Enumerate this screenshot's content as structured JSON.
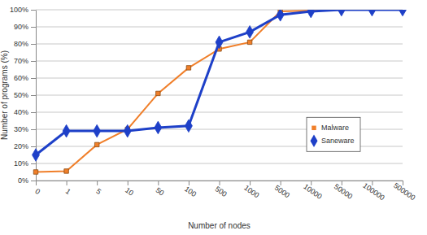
{
  "chart_data": {
    "type": "line",
    "x_label": "Number of nodes",
    "y_label": "Number of programs (%)",
    "categories": [
      "0",
      "1",
      "5",
      "10",
      "50",
      "100",
      "500",
      "1000",
      "5000",
      "10000",
      "50000",
      "100000",
      "500000"
    ],
    "series": [
      {
        "name": "Malware",
        "color": "#f07f2a",
        "marker": "square",
        "values": [
          5,
          5.5,
          21,
          30,
          51,
          66,
          77,
          81,
          99,
          99.5,
          100,
          100,
          100
        ]
      },
      {
        "name": "Saneware",
        "color": "#1e40c8",
        "marker": "diamond",
        "values": [
          15,
          29,
          29,
          29,
          31,
          32,
          81,
          87,
          97,
          99,
          100,
          100,
          100
        ]
      }
    ],
    "ylim": [
      0,
      100
    ],
    "yticks": [
      {
        "value": 0,
        "label": "0%"
      },
      {
        "value": 10,
        "label": "10%"
      },
      {
        "value": 20,
        "label": "20%"
      },
      {
        "value": 30,
        "label": "30%"
      },
      {
        "value": 40,
        "label": "40%"
      },
      {
        "value": 50,
        "label": "50%"
      },
      {
        "value": 60,
        "label": "60%"
      },
      {
        "value": 70,
        "label": "70%"
      },
      {
        "value": 80,
        "label": "80%"
      },
      {
        "value": 90,
        "label": "90%"
      },
      {
        "value": 100,
        "label": "100%"
      }
    ],
    "grid": true,
    "legend": "right"
  }
}
